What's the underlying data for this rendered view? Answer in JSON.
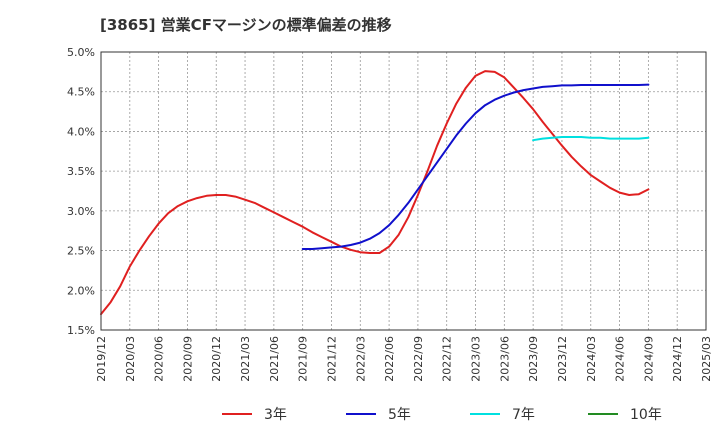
{
  "chart_data": {
    "type": "line",
    "title": "[3865]  営業CFマージンの標準偏差の推移",
    "xlabel": "",
    "ylabel": "",
    "ylim": [
      1.5,
      5.0
    ],
    "yticks": [
      "1.5%",
      "2.0%",
      "2.5%",
      "3.0%",
      "3.5%",
      "4.0%",
      "4.5%",
      "5.0%"
    ],
    "ytick_values": [
      1.5,
      2.0,
      2.5,
      3.0,
      3.5,
      4.0,
      4.5,
      5.0
    ],
    "xticks": [
      "2019/12",
      "2020/03",
      "2020/06",
      "2020/09",
      "2020/12",
      "2021/03",
      "2021/06",
      "2021/09",
      "2021/12",
      "2022/03",
      "2022/06",
      "2022/09",
      "2022/12",
      "2023/03",
      "2023/06",
      "2023/09",
      "2023/12",
      "2024/03",
      "2024/06",
      "2024/09",
      "2024/12",
      "2025/03"
    ],
    "grid": true,
    "legend_position": "bottom",
    "series": [
      {
        "name": "3年",
        "color": "#e02020",
        "points": [
          [
            "2019/12",
            1.7
          ],
          [
            "2020/01",
            1.85
          ],
          [
            "2020/02",
            2.05
          ],
          [
            "2020/03",
            2.3
          ],
          [
            "2020/04",
            2.5
          ],
          [
            "2020/05",
            2.68
          ],
          [
            "2020/06",
            2.84
          ],
          [
            "2020/07",
            2.97
          ],
          [
            "2020/08",
            3.06
          ],
          [
            "2020/09",
            3.12
          ],
          [
            "2020/10",
            3.16
          ],
          [
            "2020/11",
            3.19
          ],
          [
            "2020/12",
            3.2
          ],
          [
            "2021/01",
            3.2
          ],
          [
            "2021/02",
            3.18
          ],
          [
            "2021/03",
            3.14
          ],
          [
            "2021/04",
            3.1
          ],
          [
            "2021/05",
            3.04
          ],
          [
            "2021/06",
            2.98
          ],
          [
            "2021/07",
            2.92
          ],
          [
            "2021/08",
            2.86
          ],
          [
            "2021/09",
            2.8
          ],
          [
            "2021/10",
            2.73
          ],
          [
            "2021/11",
            2.67
          ],
          [
            "2021/12",
            2.61
          ],
          [
            "2022/01",
            2.55
          ],
          [
            "2022/02",
            2.51
          ],
          [
            "2022/03",
            2.48
          ],
          [
            "2022/04",
            2.47
          ],
          [
            "2022/05",
            2.47
          ],
          [
            "2022/06",
            2.55
          ],
          [
            "2022/07",
            2.7
          ],
          [
            "2022/08",
            2.92
          ],
          [
            "2022/09",
            3.2
          ],
          [
            "2022/10",
            3.5
          ],
          [
            "2022/11",
            3.82
          ],
          [
            "2022/12",
            4.1
          ],
          [
            "2023/01",
            4.35
          ],
          [
            "2023/02",
            4.55
          ],
          [
            "2023/03",
            4.7
          ],
          [
            "2023/04",
            4.76
          ],
          [
            "2023/05",
            4.75
          ],
          [
            "2023/06",
            4.68
          ],
          [
            "2023/07",
            4.55
          ],
          [
            "2023/08",
            4.42
          ],
          [
            "2023/09",
            4.28
          ],
          [
            "2023/10",
            4.12
          ],
          [
            "2023/11",
            3.97
          ],
          [
            "2023/12",
            3.82
          ],
          [
            "2024/01",
            3.68
          ],
          [
            "2024/02",
            3.56
          ],
          [
            "2024/03",
            3.45
          ],
          [
            "2024/04",
            3.37
          ],
          [
            "2024/05",
            3.29
          ],
          [
            "2024/06",
            3.23
          ],
          [
            "2024/07",
            3.2
          ],
          [
            "2024/08",
            3.21
          ],
          [
            "2024/09",
            3.27
          ]
        ]
      },
      {
        "name": "5年",
        "color": "#1010cc",
        "points": [
          [
            "2021/09",
            2.52
          ],
          [
            "2021/10",
            2.52
          ],
          [
            "2021/11",
            2.53
          ],
          [
            "2021/12",
            2.54
          ],
          [
            "2022/01",
            2.55
          ],
          [
            "2022/02",
            2.57
          ],
          [
            "2022/03",
            2.6
          ],
          [
            "2022/04",
            2.65
          ],
          [
            "2022/05",
            2.72
          ],
          [
            "2022/06",
            2.82
          ],
          [
            "2022/07",
            2.95
          ],
          [
            "2022/08",
            3.1
          ],
          [
            "2022/09",
            3.27
          ],
          [
            "2022/10",
            3.44
          ],
          [
            "2022/11",
            3.61
          ],
          [
            "2022/12",
            3.78
          ],
          [
            "2023/01",
            3.95
          ],
          [
            "2023/02",
            4.1
          ],
          [
            "2023/03",
            4.23
          ],
          [
            "2023/04",
            4.33
          ],
          [
            "2023/05",
            4.4
          ],
          [
            "2023/06",
            4.45
          ],
          [
            "2023/07",
            4.49
          ],
          [
            "2023/08",
            4.52
          ],
          [
            "2023/09",
            4.54
          ],
          [
            "2023/10",
            4.56
          ],
          [
            "2023/11",
            4.57
          ],
          [
            "2023/12",
            4.58
          ],
          [
            "2024/01",
            4.58
          ],
          [
            "2024/02",
            4.585
          ],
          [
            "2024/03",
            4.585
          ],
          [
            "2024/04",
            4.585
          ],
          [
            "2024/05",
            4.585
          ],
          [
            "2024/06",
            4.585
          ],
          [
            "2024/07",
            4.585
          ],
          [
            "2024/08",
            4.585
          ],
          [
            "2024/09",
            4.59
          ]
        ]
      },
      {
        "name": "7年",
        "color": "#00e0e0",
        "points": [
          [
            "2023/09",
            3.89
          ],
          [
            "2023/10",
            3.91
          ],
          [
            "2023/11",
            3.92
          ],
          [
            "2023/12",
            3.93
          ],
          [
            "2024/01",
            3.93
          ],
          [
            "2024/02",
            3.93
          ],
          [
            "2024/03",
            3.92
          ],
          [
            "2024/04",
            3.92
          ],
          [
            "2024/05",
            3.91
          ],
          [
            "2024/06",
            3.91
          ],
          [
            "2024/07",
            3.91
          ],
          [
            "2024/08",
            3.91
          ],
          [
            "2024/09",
            3.92
          ]
        ]
      },
      {
        "name": "10年",
        "color": "#228b22",
        "points": []
      }
    ]
  }
}
